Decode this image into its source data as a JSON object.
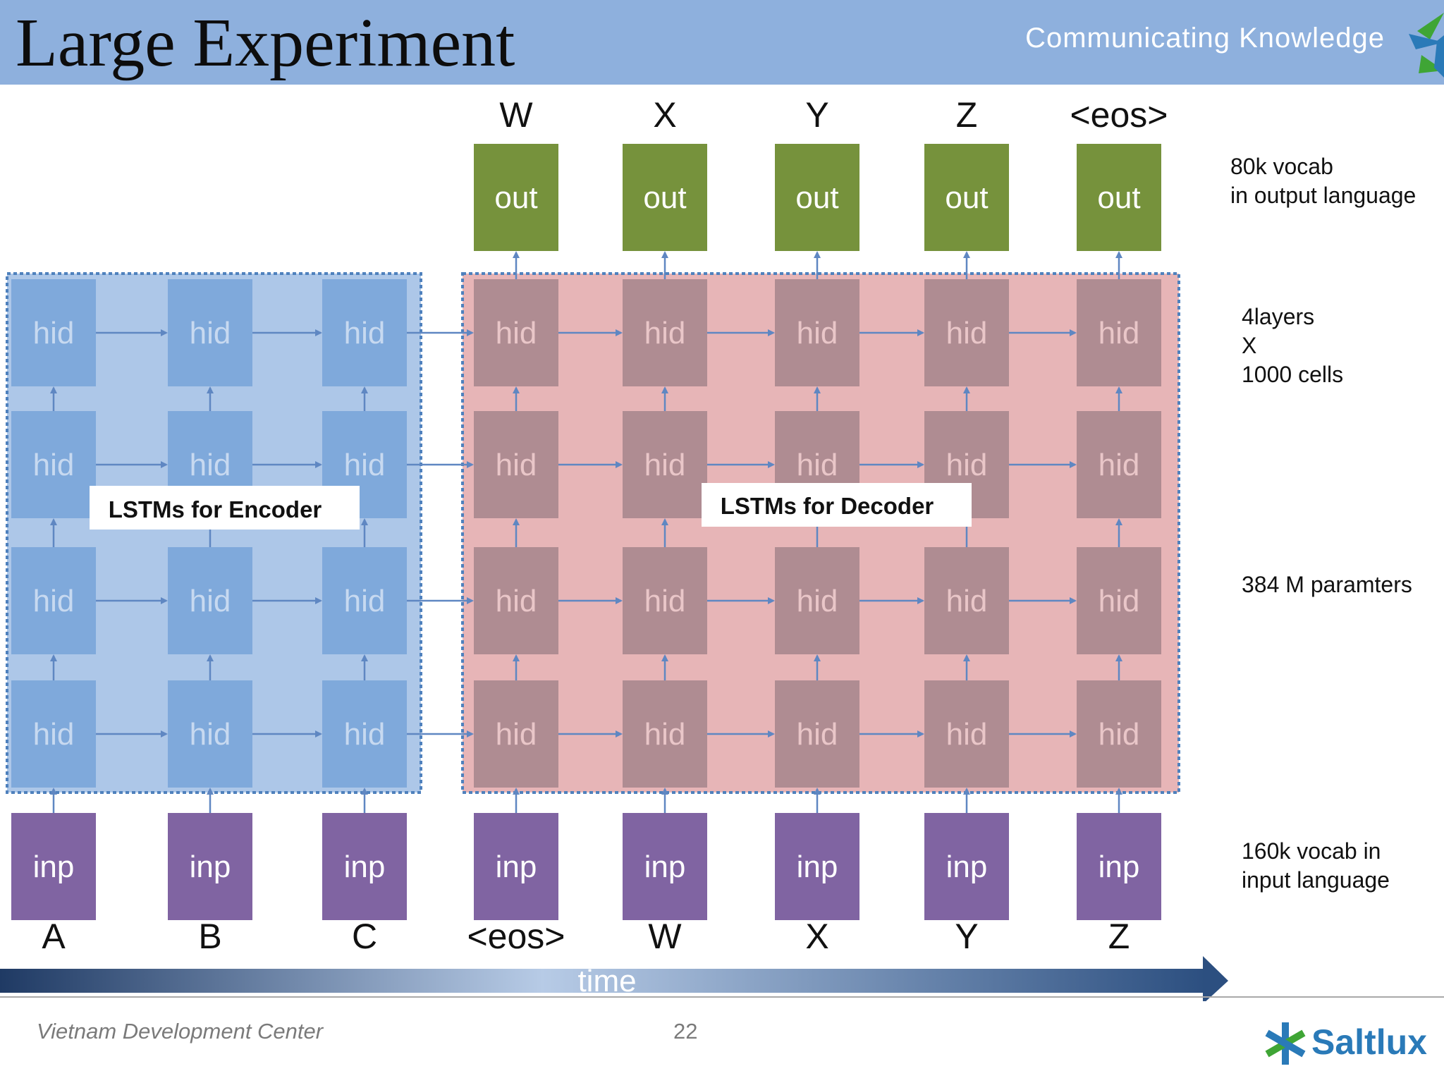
{
  "slide": {
    "title": "Large Experiment",
    "tagline": "Communicating Knowledge",
    "footer_center": "Vietnam Development Center",
    "page_number": "22",
    "logo_text": "Saltlux"
  },
  "diagram": {
    "encoder_label": "LSTMs for Encoder",
    "decoder_label": "LSTMs for Decoder",
    "hidden_label": "hid",
    "output_label": "out",
    "input_label": "inp",
    "time_label": "time",
    "layers": 4,
    "encoder_inputs": [
      "A",
      "B",
      "C"
    ],
    "decoder_inputs": [
      "<eos>",
      "W",
      "X",
      "Y",
      "Z"
    ],
    "decoder_outputs": [
      "W",
      "X",
      "Y",
      "Z",
      "<eos>"
    ],
    "annotations": {
      "output_vocab": [
        "80k vocab",
        "in output language"
      ],
      "layers": [
        "4layers",
        "X",
        "1000 cells"
      ],
      "params": [
        "384 M paramters"
      ],
      "input_vocab": [
        "160k vocab in",
        "input language"
      ]
    },
    "colors": {
      "header": "#8eb0dd",
      "encoder_region": "#adc7e8",
      "encoder_cell": "#7aa5d9",
      "decoder_region": "#e7b5b7",
      "decoder_cell": "#a8878e",
      "output_cell": "#76923c",
      "input_cell": "#8064a2",
      "arrow": "#5f87c2",
      "border": "#4f81bd"
    }
  }
}
